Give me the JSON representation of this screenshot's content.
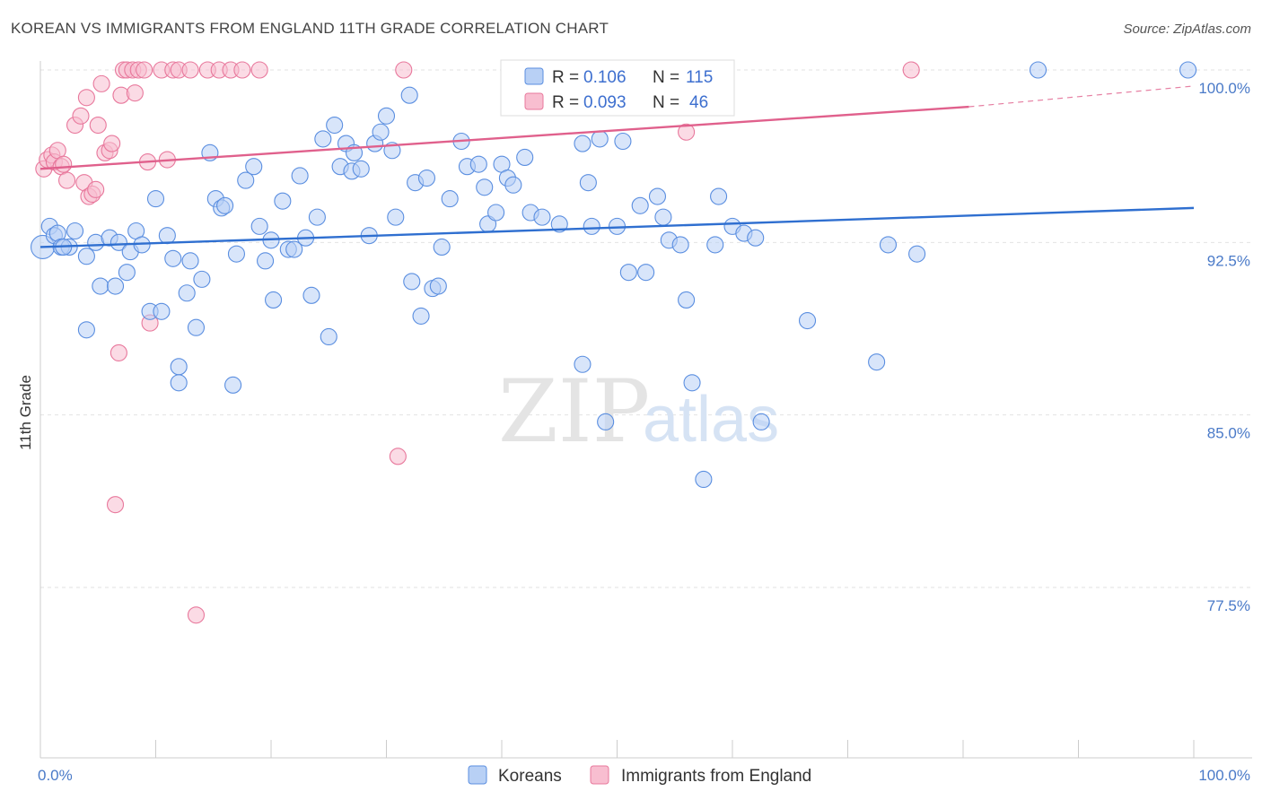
{
  "title": "KOREAN VS IMMIGRANTS FROM ENGLAND 11TH GRADE CORRELATION CHART",
  "source": "Source: ZipAtlas.com",
  "watermark": {
    "zip": "ZIP",
    "atlas": "atlas"
  },
  "legend": {
    "rows": [
      {
        "r_label": "R =",
        "r_value": "0.106",
        "n_label": "N =",
        "n_value": "115",
        "fill": "#b8d0f5",
        "stroke": "#5a8ee0"
      },
      {
        "r_label": "R =",
        "r_value": "0.093",
        "n_label": "N =",
        "n_value": "46",
        "fill": "#f8bed0",
        "stroke": "#e8789c"
      }
    ]
  },
  "bottom_legend": [
    {
      "label": "Koreans",
      "fill": "#b8d0f5",
      "stroke": "#5a8ee0"
    },
    {
      "label": "Immigrants from England",
      "fill": "#f8bed0",
      "stroke": "#e8789c"
    }
  ],
  "chart_data": {
    "type": "scatter",
    "title": "KOREAN VS IMMIGRANTS FROM ENGLAND 11TH GRADE CORRELATION CHART",
    "xlabel": "",
    "ylabel": "11th Grade",
    "xlim": [
      0,
      100
    ],
    "ylim": [
      70,
      101
    ],
    "x_tick_labels": [
      {
        "value": 0,
        "label": "0.0%"
      },
      {
        "value": 100,
        "label": "100.0%"
      }
    ],
    "y_ticks": [
      {
        "value": 77.5,
        "label": "77.5%"
      },
      {
        "value": 85.0,
        "label": "85.0%"
      },
      {
        "value": 92.5,
        "label": "92.5%"
      },
      {
        "value": 100.0,
        "label": "100.0%"
      }
    ],
    "grid": "horizontal-dashed",
    "legend_position": "top-center",
    "series": [
      {
        "name": "Koreans",
        "color": "#5a8ee0",
        "fill": "#b8d0f5",
        "trend": {
          "x": [
            0,
            100
          ],
          "y": [
            92.3,
            94.0
          ],
          "style": "solid",
          "color": "#2f6fd0"
        },
        "points": [
          [
            0.2,
            92.3
          ],
          [
            0.8,
            93.2
          ],
          [
            1.2,
            92.8
          ],
          [
            1.5,
            92.9
          ],
          [
            1.8,
            92.3
          ],
          [
            2.5,
            92.3
          ],
          [
            4.0,
            91.9
          ],
          [
            4.0,
            88.7
          ],
          [
            4.8,
            92.5
          ],
          [
            5.2,
            90.6
          ],
          [
            6.0,
            92.7
          ],
          [
            6.5,
            90.6
          ],
          [
            6.8,
            92.5
          ],
          [
            7.5,
            91.2
          ],
          [
            7.8,
            92.1
          ],
          [
            8.3,
            93.0
          ],
          [
            8.8,
            92.4
          ],
          [
            9.5,
            89.5
          ],
          [
            10.0,
            94.4
          ],
          [
            10.5,
            89.5
          ],
          [
            11.0,
            92.8
          ],
          [
            11.5,
            91.8
          ],
          [
            12.0,
            87.1
          ],
          [
            12.0,
            86.4
          ],
          [
            12.7,
            90.3
          ],
          [
            13.0,
            91.7
          ],
          [
            13.5,
            88.8
          ],
          [
            14.0,
            90.9
          ],
          [
            14.7,
            96.4
          ],
          [
            15.2,
            94.4
          ],
          [
            15.7,
            94.0
          ],
          [
            16.0,
            94.1
          ],
          [
            16.7,
            86.3
          ],
          [
            17.0,
            92.0
          ],
          [
            17.8,
            95.2
          ],
          [
            18.5,
            95.8
          ],
          [
            19.0,
            93.2
          ],
          [
            19.5,
            91.7
          ],
          [
            20.0,
            92.6
          ],
          [
            20.2,
            90.0
          ],
          [
            21.0,
            94.3
          ],
          [
            21.5,
            92.2
          ],
          [
            22.0,
            92.2
          ],
          [
            22.5,
            95.4
          ],
          [
            23.0,
            92.7
          ],
          [
            23.5,
            90.2
          ],
          [
            24.0,
            93.6
          ],
          [
            24.5,
            97.0
          ],
          [
            25.0,
            88.4
          ],
          [
            25.5,
            97.6
          ],
          [
            26.0,
            95.8
          ],
          [
            26.5,
            96.8
          ],
          [
            27.0,
            95.6
          ],
          [
            27.2,
            96.4
          ],
          [
            27.8,
            95.7
          ],
          [
            28.5,
            92.8
          ],
          [
            29.0,
            96.8
          ],
          [
            29.5,
            97.3
          ],
          [
            30.0,
            98.0
          ],
          [
            30.5,
            96.5
          ],
          [
            30.8,
            93.6
          ],
          [
            32.0,
            98.9
          ],
          [
            32.2,
            90.8
          ],
          [
            32.5,
            95.1
          ],
          [
            33.0,
            89.3
          ],
          [
            33.5,
            95.3
          ],
          [
            34.0,
            90.5
          ],
          [
            34.5,
            90.6
          ],
          [
            34.8,
            92.3
          ],
          [
            35.5,
            94.4
          ],
          [
            36.5,
            96.9
          ],
          [
            37.0,
            95.8
          ],
          [
            38.0,
            95.9
          ],
          [
            38.5,
            94.9
          ],
          [
            38.8,
            93.3
          ],
          [
            39.5,
            93.8
          ],
          [
            40.0,
            95.9
          ],
          [
            40.5,
            95.3
          ],
          [
            41.0,
            95.0
          ],
          [
            42.0,
            96.2
          ],
          [
            42.5,
            93.8
          ],
          [
            43.5,
            93.6
          ],
          [
            45.0,
            93.3
          ],
          [
            47.0,
            87.2
          ],
          [
            47.0,
            96.8
          ],
          [
            47.5,
            95.1
          ],
          [
            47.8,
            93.2
          ],
          [
            48.5,
            97.0
          ],
          [
            49.0,
            84.7
          ],
          [
            50.0,
            93.2
          ],
          [
            50.5,
            96.9
          ],
          [
            51.0,
            91.2
          ],
          [
            52.0,
            94.1
          ],
          [
            52.5,
            91.2
          ],
          [
            53.5,
            94.5
          ],
          [
            54.0,
            93.6
          ],
          [
            54.5,
            92.6
          ],
          [
            55.5,
            92.4
          ],
          [
            56.0,
            90.0
          ],
          [
            56.5,
            86.4
          ],
          [
            57.5,
            82.2
          ],
          [
            58.5,
            92.4
          ],
          [
            58.8,
            94.5
          ],
          [
            60.0,
            93.2
          ],
          [
            61.0,
            92.9
          ],
          [
            62.0,
            92.7
          ],
          [
            62.5,
            84.7
          ],
          [
            66.5,
            89.1
          ],
          [
            72.5,
            87.3
          ],
          [
            73.5,
            92.4
          ],
          [
            76.0,
            92.0
          ],
          [
            86.5,
            100.0
          ],
          [
            99.5,
            100.0
          ],
          [
            2.0,
            92.3
          ],
          [
            3.0,
            93.0
          ]
        ]
      },
      {
        "name": "Immigrants from England",
        "color": "#e8789c",
        "fill": "#f8bed0",
        "trend": {
          "x": [
            0,
            80.5
          ],
          "y": [
            95.7,
            98.4
          ],
          "style": "solid",
          "color": "#e0608c",
          "dashed_extension": {
            "x": [
              80.5,
              100
            ],
            "y": [
              98.4,
              99.3
            ]
          }
        },
        "points": [
          [
            0.3,
            95.7
          ],
          [
            0.6,
            96.1
          ],
          [
            1.0,
            96.3
          ],
          [
            1.2,
            96.0
          ],
          [
            1.5,
            96.5
          ],
          [
            1.8,
            95.8
          ],
          [
            2.0,
            95.9
          ],
          [
            2.3,
            95.2
          ],
          [
            3.0,
            97.6
          ],
          [
            3.5,
            98.0
          ],
          [
            3.8,
            95.1
          ],
          [
            4.0,
            98.8
          ],
          [
            4.2,
            94.5
          ],
          [
            4.5,
            94.6
          ],
          [
            4.8,
            94.8
          ],
          [
            5.0,
            97.6
          ],
          [
            5.3,
            99.4
          ],
          [
            5.6,
            96.4
          ],
          [
            6.0,
            96.5
          ],
          [
            6.2,
            96.8
          ],
          [
            6.5,
            81.1
          ],
          [
            6.8,
            87.7
          ],
          [
            7.0,
            98.9
          ],
          [
            7.2,
            100.0
          ],
          [
            7.5,
            100.0
          ],
          [
            8.0,
            100.0
          ],
          [
            8.2,
            99.0
          ],
          [
            8.5,
            100.0
          ],
          [
            9.0,
            100.0
          ],
          [
            9.3,
            96.0
          ],
          [
            9.5,
            89.0
          ],
          [
            10.5,
            100.0
          ],
          [
            11.0,
            96.1
          ],
          [
            11.5,
            100.0
          ],
          [
            12.0,
            100.0
          ],
          [
            13.0,
            100.0
          ],
          [
            13.5,
            76.3
          ],
          [
            14.5,
            100.0
          ],
          [
            15.5,
            100.0
          ],
          [
            16.5,
            100.0
          ],
          [
            17.5,
            100.0
          ],
          [
            19.0,
            100.0
          ],
          [
            31.5,
            100.0
          ],
          [
            31.0,
            83.2
          ],
          [
            56.0,
            97.3
          ],
          [
            75.5,
            100.0
          ]
        ]
      }
    ]
  }
}
